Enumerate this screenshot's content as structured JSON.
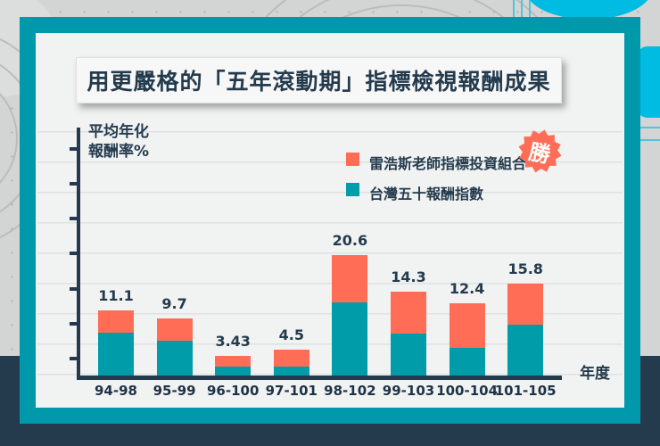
{
  "header": {
    "title": "用更嚴格的「五年滾動期」指標檢視報酬成果"
  },
  "y_axis": {
    "title_line1": "平均年化",
    "title_line2": "報酬率%"
  },
  "x_axis": {
    "title": "年度"
  },
  "legend": {
    "items": [
      {
        "label": "雷浩斯老師指標投資組合",
        "color": "#FF6D56"
      },
      {
        "label": "台灣五十報酬指數",
        "color": "#009CA9"
      }
    ],
    "badge": {
      "text": "勝",
      "color": "#FF6D56",
      "text_color": "#FFFFFF"
    },
    "position": "top-right"
  },
  "chart_data": {
    "type": "bar",
    "stacked": true,
    "categories": [
      "94-98",
      "95-99",
      "96-100",
      "97-101",
      "98-102",
      "99-103",
      "100-104",
      "101-105"
    ],
    "series": [
      {
        "name": "雷浩斯老師指標投資組合",
        "color": "#FF6D56",
        "values": [
          11.1,
          9.7,
          3.43,
          4.5,
          20.6,
          14.3,
          12.4,
          15.8
        ],
        "note": "total annualized return, shown as data label on top of each stacked bar"
      },
      {
        "name": "台灣五十報酬指數",
        "color": "#009CA9",
        "values": [
          7.4,
          5.9,
          1.6,
          1.6,
          12.5,
          7.2,
          4.7,
          8.7
        ],
        "note": "teal lower segment, values estimated from bar heights (not labeled)"
      }
    ],
    "value_labels": [
      "11.1",
      "9.7",
      "3.43",
      "4.5",
      "20.6",
      "14.3",
      "12.4",
      "15.8"
    ],
    "xlabel": "年度",
    "ylabel": "平均年化報酬率%",
    "y_tick_labels": [],
    "y_tick_count": 7,
    "grid": "horizontal light ruled lines, unlabeled y ticks",
    "legend_position": "top-right"
  },
  "colors": {
    "background": "#D3D4D4",
    "frame_teal": "#0099AB",
    "card": "#F1F2F2",
    "navy": "#243B4D",
    "orange": "#FF6D56",
    "bar_teal": "#009CA9",
    "cyan_accent": "#00BCE2",
    "grid_line": "#E0E1E1",
    "title_box_bg": "#F7F7F7"
  }
}
